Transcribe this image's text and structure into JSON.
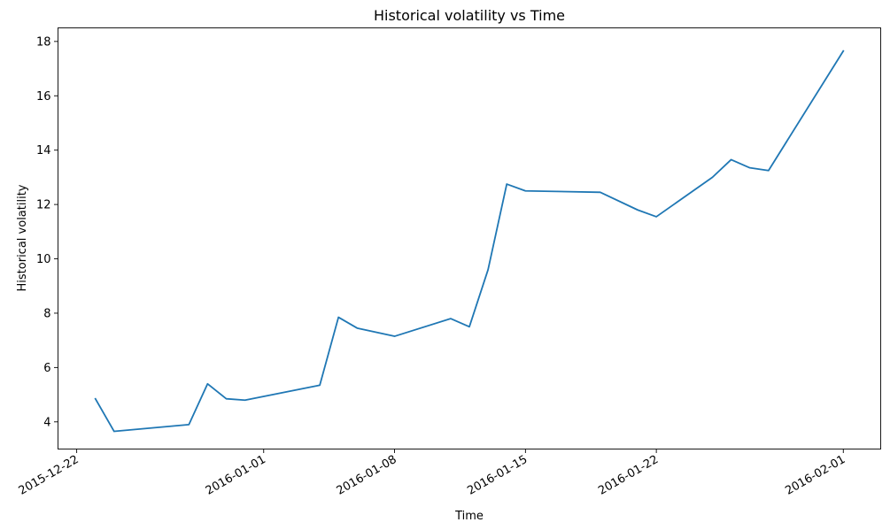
{
  "chart_data": {
    "type": "line",
    "title": "Historical volatility vs Time",
    "xlabel": "Time",
    "ylabel": "Historical volatility",
    "grid": false,
    "legend": false,
    "xlim": [
      "2015-12-21T00:00",
      "2016-02-03T00:00"
    ],
    "ylim": [
      3.0,
      18.5
    ],
    "x_ticks": [
      "2015-12-22",
      "2016-01-01",
      "2016-01-08",
      "2016-01-15",
      "2016-01-22",
      "2016-02-01"
    ],
    "y_ticks": [
      4,
      6,
      8,
      10,
      12,
      14,
      16,
      18
    ],
    "series": [
      {
        "color": "#1f77b4",
        "points": [
          {
            "x": "2015-12-23",
            "y": 4.85
          },
          {
            "x": "2015-12-24",
            "y": 3.65
          },
          {
            "x": "2015-12-28",
            "y": 3.9
          },
          {
            "x": "2015-12-29",
            "y": 5.4
          },
          {
            "x": "2015-12-30",
            "y": 4.85
          },
          {
            "x": "2015-12-31",
            "y": 4.8
          },
          {
            "x": "2016-01-04",
            "y": 5.35
          },
          {
            "x": "2016-01-05",
            "y": 7.85
          },
          {
            "x": "2016-01-06",
            "y": 7.45
          },
          {
            "x": "2016-01-08",
            "y": 7.15
          },
          {
            "x": "2016-01-11",
            "y": 7.8
          },
          {
            "x": "2016-01-12",
            "y": 7.5
          },
          {
            "x": "2016-01-13",
            "y": 9.6
          },
          {
            "x": "2016-01-14",
            "y": 12.75
          },
          {
            "x": "2016-01-15",
            "y": 12.5
          },
          {
            "x": "2016-01-19",
            "y": 12.45
          },
          {
            "x": "2016-01-21",
            "y": 11.8
          },
          {
            "x": "2016-01-22",
            "y": 11.55
          },
          {
            "x": "2016-01-25",
            "y": 13.0
          },
          {
            "x": "2016-01-26",
            "y": 13.65
          },
          {
            "x": "2016-01-27",
            "y": 13.35
          },
          {
            "x": "2016-01-28",
            "y": 13.25
          },
          {
            "x": "2016-02-01",
            "y": 17.65
          }
        ]
      }
    ]
  }
}
